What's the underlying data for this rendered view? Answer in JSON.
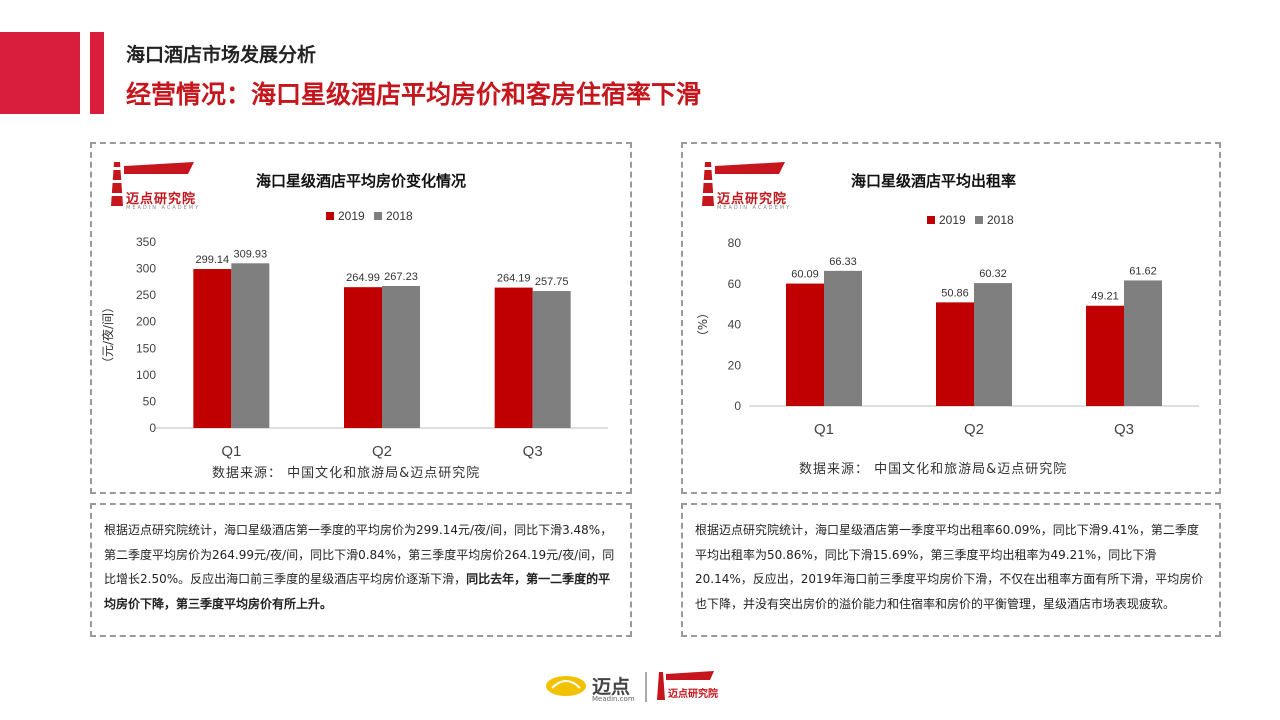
{
  "header": {
    "title": "海口酒店市场发展分析",
    "subtitle": "经营情况：海口星级酒店平均房价和客房住宿率下滑"
  },
  "brand": {
    "logo_name": "迈点研究院",
    "logo_en": "MEADIN ACADEMY",
    "footer_left": "迈点",
    "footer_left_sub": "Meadin.com",
    "footer_right": "迈点研究院",
    "accent": "#c4161c"
  },
  "colors": {
    "series_2019": "#c00000",
    "series_2018": "#7f7f7f",
    "accent": "#d81e3c"
  },
  "left": {
    "source": "数据来源： 中国文化和旅游局&迈点研究院",
    "text_normal": "根据迈点研究院统计，海口星级酒店第一季度的平均房价为299.14元/夜/间，同比下滑3.48%，第二季度平均房价为264.99元/夜/间，同比下滑0.84%，第三季度平均房价264.19元/夜/间，同比增长2.50%。反应出海口前三季度的星级酒店平均房价逐渐下滑，",
    "text_bold": "同比去年，第一二季度的平均房价下降，第三季度平均房价有所上升。"
  },
  "right": {
    "source": "数据来源： 中国文化和旅游局&迈点研究院",
    "text": "根据迈点研究院统计，海口星级酒店第一季度平均出租率60.09%，同比下滑9.41%，第二季度平均出租率为50.86%，同比下滑15.69%，第三季度平均出租率为49.21%，同比下滑20.14%，反应出，2019年海口前三季度平均房价下滑，不仅在出租率方面有所下滑，平均房价也下降，并没有突出房价的溢价能力和住宿率和房价的平衡管理，星级酒店市场表现疲软。"
  },
  "chart_data": [
    {
      "type": "bar",
      "title": "海口星级酒店平均房价变化情况",
      "ylabel": "（元/夜/间）",
      "xlabel": "",
      "categories": [
        "Q1",
        "Q2",
        "Q3"
      ],
      "series": [
        {
          "name": "2019",
          "values": [
            299.14,
            264.99,
            264.19
          ]
        },
        {
          "name": "2018",
          "values": [
            309.93,
            267.23,
            257.75
          ]
        }
      ],
      "ylim": [
        0,
        350
      ],
      "yticks": [
        0,
        50,
        100,
        150,
        200,
        250,
        300,
        350
      ],
      "legend": "top",
      "grid": false
    },
    {
      "type": "bar",
      "title": "海口星级酒店平均出租率",
      "ylabel": "（%）",
      "xlabel": "",
      "categories": [
        "Q1",
        "Q2",
        "Q3"
      ],
      "series": [
        {
          "name": "2019",
          "values": [
            60.09,
            50.86,
            49.21
          ]
        },
        {
          "name": "2018",
          "values": [
            66.33,
            60.32,
            61.62
          ]
        }
      ],
      "ylim": [
        0,
        80
      ],
      "yticks": [
        0,
        20,
        40,
        60,
        80
      ],
      "legend": "top",
      "grid": false
    }
  ]
}
